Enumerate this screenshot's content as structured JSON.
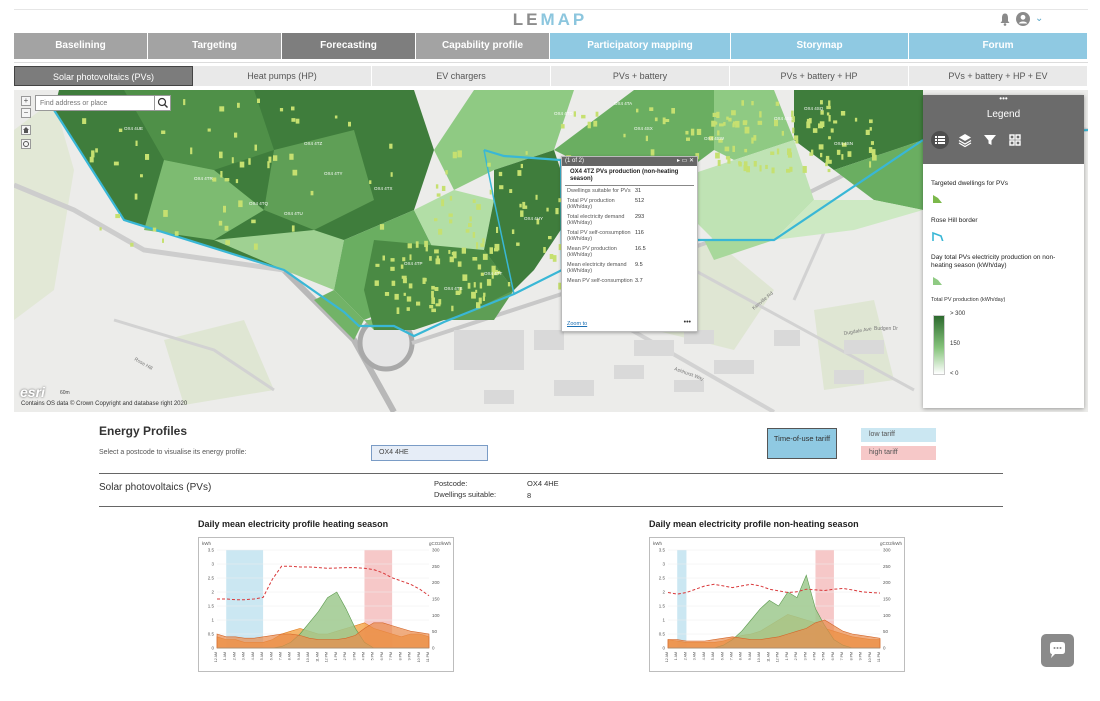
{
  "brand": {
    "part1": "LE",
    "part2": "MAP"
  },
  "main_nav": [
    {
      "label": "Baselining",
      "style": "grey"
    },
    {
      "label": "Targeting",
      "style": "grey"
    },
    {
      "label": "Forecasting",
      "style": "dark"
    },
    {
      "label": "Capability profile",
      "style": "grey"
    },
    {
      "label": "Participatory mapping",
      "style": "blue"
    },
    {
      "label": "Storymap",
      "style": "blue"
    },
    {
      "label": "Forum",
      "style": "blue"
    }
  ],
  "sub_nav": [
    {
      "label": "Solar photovoltaics (PVs)",
      "active": true
    },
    {
      "label": "Heat pumps (HP)",
      "active": false
    },
    {
      "label": "EV chargers",
      "active": false
    },
    {
      "label": "PVs + battery",
      "active": false
    },
    {
      "label": "PVs + battery + HP",
      "active": false
    },
    {
      "label": "PVs + battery + HP + EV",
      "active": false
    }
  ],
  "map": {
    "search_placeholder": "Find address or place",
    "attribution": "Contains OS data © Crown Copyright and database right 2020",
    "esri": "esri",
    "scale": "60m",
    "zone_labels": [
      "OX4 4UE",
      "OX4 4TZ",
      "OX4 4TY",
      "OX4 4TX",
      "OX4 4TU",
      "OX4 4TR",
      "OX4 4TQ",
      "OX4 4TP",
      "OX4 4TS",
      "OX4 4TT",
      "OX4 4TD",
      "OX4 4TA",
      "OX4 4SX",
      "OX4 4SW",
      "OX4 4SS",
      "OX4 4SQ",
      "OX4 4SN",
      "OX4 4SR",
      "OX4 4HY"
    ],
    "street_labels": [
      "Kenville Rd",
      "Rose Hill",
      "Ashhurst Way",
      "Dugdale Ave",
      "Budgen Dr"
    ]
  },
  "popup": {
    "header": "(1 of 2)",
    "title": "OX4 4TZ PVs production (non-heating season)",
    "rows": [
      {
        "k": "Dwellings suitable for PVs",
        "v": "31"
      },
      {
        "k": "Total PV production (kWh/day)",
        "v": "512"
      },
      {
        "k": "Total electricity demand (kWh/day)",
        "v": "293"
      },
      {
        "k": "Total PV self-consumption (kWh/day)",
        "v": "116"
      },
      {
        "k": "Mean PV production (kWh/day)",
        "v": "16.5"
      },
      {
        "k": "Mean electricity demand (kWh/day)",
        "v": "9.5"
      },
      {
        "k": "Mean PV self-consumption",
        "v": "3.7"
      }
    ],
    "zoom": "Zoom to",
    "more": "•••"
  },
  "legend": {
    "dots": "•••",
    "title": "Legend",
    "items": [
      "Targeted dwellings for PVs",
      "Rose Hill border",
      "Day total PVs electricity production on non-heating season (kWh/day)"
    ],
    "ramp_title": "Total PV production (kWh/day)",
    "ramp_labels": [
      "> 300",
      "150",
      "< 0"
    ]
  },
  "energy": {
    "title": "Energy Profiles",
    "select_text": "Select a postcode to visualise its energy profile:",
    "postcode_input": "OX4 4HE",
    "tou_button": "Time-of-use tariff",
    "low_tariff": "low tariff",
    "high_tariff": "high tariff",
    "section_label": "Solar photovoltaics (PVs)",
    "postcode_key": "Postcode:",
    "postcode_val": "OX4 4HE",
    "dwellings_key": "Dwellings suitable:",
    "dwellings_val": "8"
  },
  "charts": {
    "left_title_a": "Daily mean electricity profile ",
    "left_title_b": "heating season",
    "right_title_a": "Daily mean electricity profile non-",
    "right_title_b": "heating season"
  },
  "colors": {
    "dark_green": "#3f7d3c",
    "mid_green": "#6aae61",
    "light_green": "#a8d89b",
    "boundary": "#39b7d6",
    "low_tariff": "#cbe7f2",
    "high_tariff": "#f6c8c8"
  },
  "chart_data": [
    {
      "type": "area",
      "title": "Daily mean electricity profile heating season",
      "ylabel": "kWh",
      "y2label": "gCO2/kWh",
      "ylim": [
        0,
        3.5
      ],
      "y2lim": [
        0,
        300
      ],
      "yticks": [
        "3.5",
        "3",
        "2.5",
        "2",
        "1.5",
        "1",
        "0.5",
        "0"
      ],
      "y2ticks": [
        "300",
        "250",
        "200",
        "150",
        "100",
        "50",
        "0"
      ],
      "x_labels": [
        "12 AM",
        "1 AM",
        "2 AM",
        "3 AM",
        "4 AM",
        "5 AM",
        "6 AM",
        "7 AM",
        "8 AM",
        "9 AM",
        "10 AM",
        "11 AM",
        "12 PM",
        "1 PM",
        "2 PM",
        "3 PM",
        "4 PM",
        "5 PM",
        "6 PM",
        "7 PM",
        "8 PM",
        "9 PM",
        "10 PM",
        "11 PM"
      ],
      "low_tariff": [
        1,
        5
      ],
      "high_tariff": [
        16,
        19
      ],
      "series": [
        {
          "values": [
            0.4,
            0.3,
            0.3,
            0.2,
            0.2,
            0.2,
            0.3,
            0.5,
            0.6,
            0.7,
            0.6,
            0.5,
            0.5,
            0.6,
            0.7,
            0.8,
            0.9,
            0.7,
            0.6,
            0.5,
            0.4,
            0.5,
            0.5,
            0.4
          ]
        },
        {
          "values": [
            0,
            0,
            0,
            0,
            0,
            0,
            0,
            0.05,
            0.2,
            0.5,
            0.9,
            1.3,
            1.8,
            2.0,
            1.4,
            0.7,
            0.2,
            0,
            0,
            0,
            0,
            0,
            0,
            0
          ]
        },
        {
          "values": [
            0.5,
            0.4,
            0.4,
            0.35,
            0.35,
            0.4,
            0.45,
            0.5,
            0.5,
            0.45,
            0.35,
            0.3,
            0.3,
            0.3,
            0.35,
            0.45,
            0.7,
            0.9,
            0.9,
            0.8,
            0.7,
            0.6,
            0.55,
            0.5
          ]
        },
        {
          "values": [
            150,
            150,
            148,
            148,
            150,
            155,
            210,
            250,
            250,
            248,
            248,
            246,
            244,
            245,
            246,
            246,
            244,
            240,
            230,
            215,
            205,
            195,
            180,
            160
          ]
        }
      ]
    },
    {
      "type": "area",
      "title": "Daily mean electricity profile non-heating season",
      "ylabel": "kWh",
      "y2label": "gCO2/kWh",
      "ylim": [
        0,
        3.5
      ],
      "y2lim": [
        0,
        300
      ],
      "yticks": [
        "3.5",
        "3",
        "2.5",
        "2",
        "1.5",
        "1",
        "0.5",
        "0"
      ],
      "y2ticks": [
        "300",
        "250",
        "200",
        "150",
        "100",
        "50",
        "0"
      ],
      "x_labels": [
        "12 AM",
        "1 AM",
        "2 AM",
        "3 AM",
        "4 AM",
        "5 AM",
        "6 AM",
        "7 AM",
        "8 AM",
        "9 AM",
        "10 AM",
        "11 AM",
        "12 PM",
        "1 PM",
        "2 PM",
        "3 PM",
        "4 PM",
        "5 PM",
        "6 PM",
        "7 PM",
        "8 PM",
        "9 PM",
        "10 PM",
        "11 PM"
      ],
      "low_tariff": [
        1,
        2
      ],
      "high_tariff": [
        16,
        18
      ],
      "series": [
        {
          "values": [
            0.3,
            0.25,
            0.2,
            0.2,
            0.2,
            0.2,
            0.25,
            0.35,
            0.45,
            0.5,
            0.6,
            0.8,
            1.0,
            1.2,
            1.1,
            1.0,
            0.9,
            0.7,
            0.6,
            0.5,
            0.4,
            0.35,
            0.3,
            0.3
          ]
        },
        {
          "values": [
            0,
            0,
            0,
            0,
            0,
            0,
            0.1,
            0.3,
            0.6,
            1.0,
            1.4,
            1.7,
            1.5,
            2.0,
            1.8,
            2.6,
            1.4,
            0.8,
            0.3,
            0.1,
            0,
            0,
            0,
            0
          ]
        },
        {
          "values": [
            0.3,
            0.3,
            0.25,
            0.25,
            0.25,
            0.3,
            0.35,
            0.4,
            0.35,
            0.3,
            0.3,
            0.35,
            0.4,
            0.5,
            0.6,
            0.7,
            0.9,
            1.0,
            0.8,
            0.6,
            0.5,
            0.45,
            0.4,
            0.35
          ]
        },
        {
          "values": [
            170,
            165,
            170,
            180,
            190,
            195,
            190,
            185,
            190,
            195,
            190,
            180,
            175,
            170,
            172,
            180,
            178,
            176,
            180,
            182,
            178,
            172,
            170,
            168
          ]
        }
      ]
    }
  ]
}
